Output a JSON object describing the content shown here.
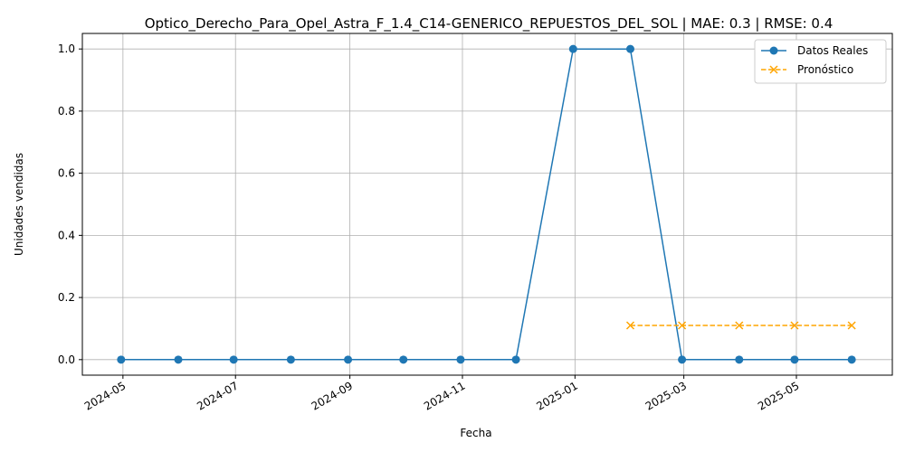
{
  "chart_data": {
    "type": "line",
    "title": "Optico_Derecho_Para_Opel_Astra_F_1.4_C14-GENERICO_REPUESTOS_DEL_SOL | MAE: 0.3 | RMSE: 0.4",
    "xlabel": "Fecha",
    "ylabel": "Unidades vendidas",
    "x_ticks": [
      "2024-05",
      "2024-07",
      "2024-09",
      "2024-11",
      "2025-01",
      "2025-03",
      "2025-05"
    ],
    "y_ticks": [
      "0.0",
      "0.2",
      "0.4",
      "0.6",
      "0.8",
      "1.0"
    ],
    "ylim": [
      -0.05,
      1.05
    ],
    "xlim": [
      "2024-04-09",
      "2025-06-22"
    ],
    "grid": true,
    "legend_position": "top-right",
    "series": [
      {
        "name": "Datos Reales",
        "color": "#1f77b4",
        "marker": "circle",
        "linestyle": "solid",
        "x": [
          "2024-04-30",
          "2024-05-31",
          "2024-06-30",
          "2024-07-31",
          "2024-08-31",
          "2024-09-30",
          "2024-10-31",
          "2024-11-30",
          "2024-12-31",
          "2025-01-31",
          "2025-02-28",
          "2025-03-31",
          "2025-04-30",
          "2025-05-31"
        ],
        "y": [
          0,
          0,
          0,
          0,
          0,
          0,
          0,
          0,
          1,
          1,
          0,
          0,
          0,
          0
        ]
      },
      {
        "name": "Pronóstico",
        "color": "#ffa500",
        "marker": "x",
        "linestyle": "dashed",
        "x": [
          "2025-01-31",
          "2025-02-28",
          "2025-03-31",
          "2025-04-30",
          "2025-05-31"
        ],
        "y": [
          0.11,
          0.11,
          0.11,
          0.11,
          0.11
        ]
      }
    ]
  }
}
